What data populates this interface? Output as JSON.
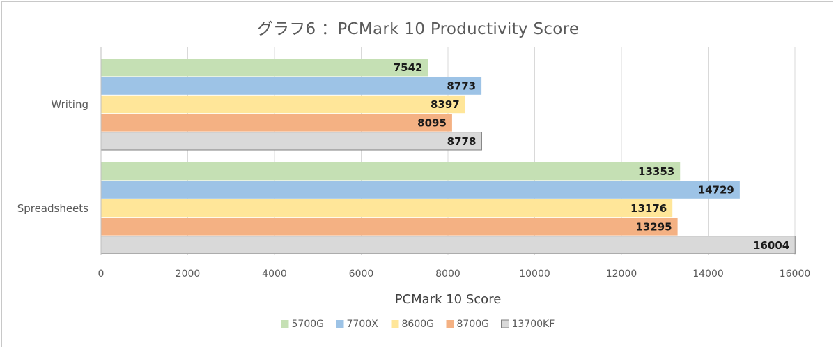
{
  "chart_data": {
    "type": "bar",
    "orientation": "horizontal",
    "title": "グラフ6 ：PCMark 10 Productivity Score",
    "xlabel": "PCMark 10 Score",
    "categories": [
      "Writing",
      "Spreadsheets"
    ],
    "xlim": [
      0,
      16000
    ],
    "ticks": [
      0,
      2000,
      4000,
      6000,
      8000,
      10000,
      12000,
      14000,
      16000
    ],
    "grid": true,
    "legend_position": "bottom",
    "series": [
      {
        "name": "5700G",
        "color": "#c5e0b4",
        "values": [
          7542,
          13353
        ]
      },
      {
        "name": "7700X",
        "color": "#9dc3e6",
        "values": [
          8773,
          14729
        ]
      },
      {
        "name": "8600G",
        "color": "#ffe699",
        "values": [
          8397,
          13176
        ]
      },
      {
        "name": "8700G",
        "color": "#f4b183",
        "values": [
          8095,
          13295
        ]
      },
      {
        "name": "13700KF",
        "color": "#d9d9d9",
        "values": [
          8778,
          16004
        ]
      }
    ]
  }
}
